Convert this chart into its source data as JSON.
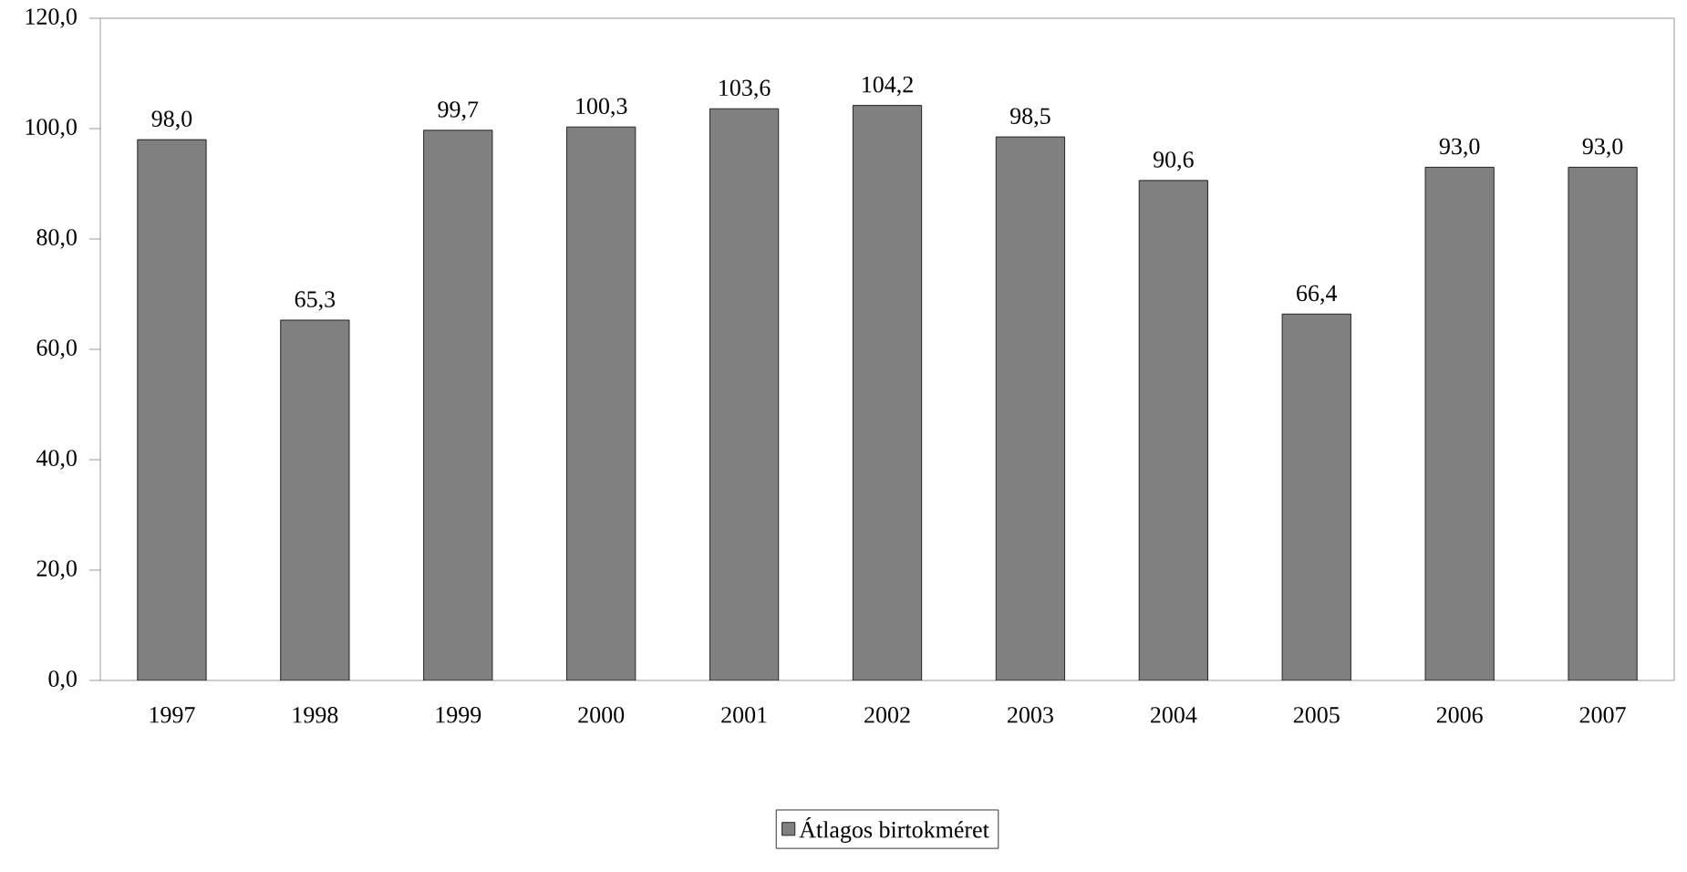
{
  "chart_data": {
    "type": "bar",
    "categories": [
      "1997",
      "1998",
      "1999",
      "2000",
      "2001",
      "2002",
      "2003",
      "2004",
      "2005",
      "2006",
      "2007"
    ],
    "series": [
      {
        "name": "Átlagos birtokméret",
        "color": "#808080",
        "values": [
          98.0,
          65.3,
          99.7,
          100.3,
          103.6,
          104.2,
          98.5,
          90.6,
          66.4,
          93.0,
          93.0
        ],
        "value_labels": [
          "98,0",
          "65,3",
          "99,7",
          "100,3",
          "103,6",
          "104,2",
          "98,5",
          "90,6",
          "66,4",
          "93,0",
          "93,0"
        ]
      }
    ],
    "ylim": [
      0,
      120
    ],
    "yticks": [
      {
        "value": 0,
        "label": "0,0"
      },
      {
        "value": 20,
        "label": "20,0"
      },
      {
        "value": 40,
        "label": "40,0"
      },
      {
        "value": 60,
        "label": "60,0"
      },
      {
        "value": 80,
        "label": "80,0"
      },
      {
        "value": 100,
        "label": "100,0"
      },
      {
        "value": 120,
        "label": "120,0"
      }
    ],
    "grid": false,
    "legend": "bottom"
  }
}
